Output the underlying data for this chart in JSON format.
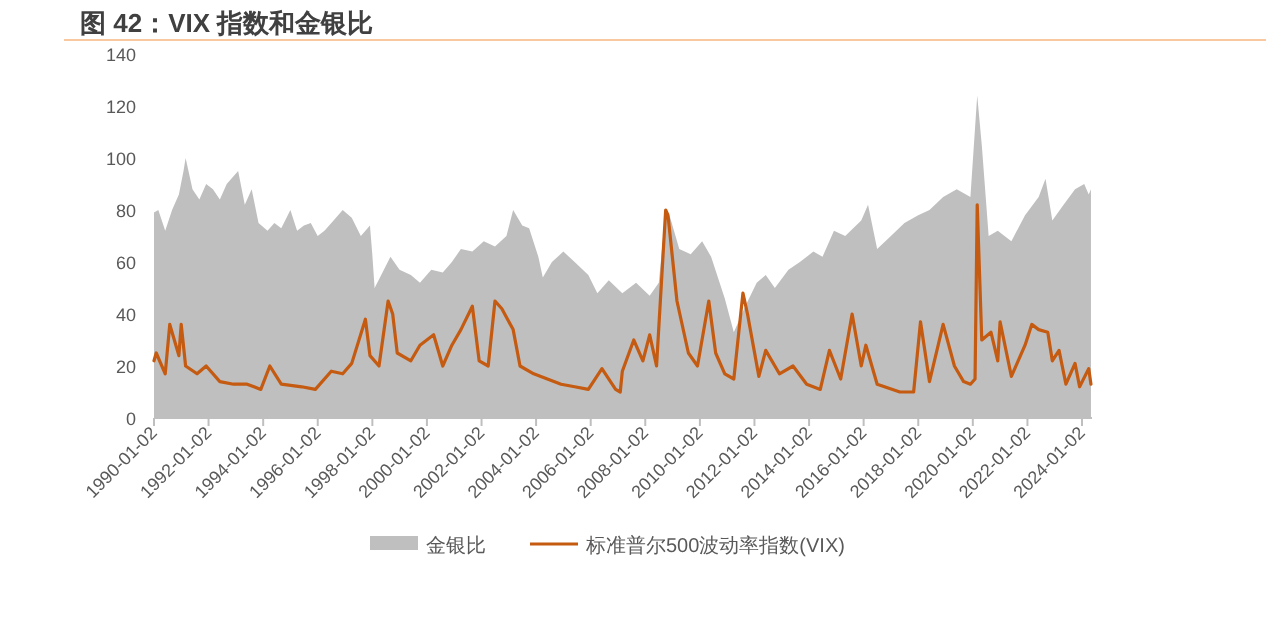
{
  "chart_data": {
    "type": "area",
    "title": "图 42：VIX 指数和金银比",
    "legend": "bottom",
    "grid": false,
    "xlim": [
      "1990-01-02",
      "2024-05-15"
    ],
    "ylim": [
      0,
      140
    ],
    "yticks": [
      0,
      20,
      40,
      60,
      80,
      100,
      120,
      140
    ],
    "xticks": [
      "1990-01-02",
      "1992-01-02",
      "1994-01-02",
      "1996-01-02",
      "1998-01-02",
      "2000-01-02",
      "2002-01-02",
      "2004-01-02",
      "2006-01-02",
      "2008-01-02",
      "2010-01-02",
      "2012-01-02",
      "2014-01-02",
      "2016-01-02",
      "2018-01-02",
      "2020-01-02",
      "2022-01-02",
      "2024-01-02"
    ],
    "series": [
      {
        "name": "金银比",
        "color": "#bfbfbf",
        "x": [
          "1990-01-02",
          "1990-03",
          "1990-06",
          "1990-09",
          "1990-12",
          "1991-02",
          "1991-03",
          "1991-06",
          "1991-09",
          "1991-12",
          "1992-03",
          "1992-06",
          "1992-09",
          "1992-12",
          "1993-02",
          "1993-05",
          "1993-08",
          "1993-11",
          "1994-03",
          "1994-06",
          "1994-09",
          "1995-01",
          "1995-04",
          "1995-07",
          "1995-10",
          "1996-01",
          "1996-04",
          "1996-08",
          "1996-12",
          "1997-04",
          "1997-08",
          "1997-12",
          "1998-01",
          "1998-02",
          "1998-05",
          "1998-09",
          "1999-01",
          "1999-06",
          "1999-10",
          "2000-03",
          "2000-08",
          "2000-12",
          "2001-04",
          "2001-09",
          "2002-02",
          "2002-07",
          "2002-12",
          "2003-03",
          "2003-07",
          "2003-10",
          "2004-02",
          "2004-04",
          "2004-08",
          "2005-01",
          "2005-06",
          "2005-12",
          "2006-04",
          "2006-09",
          "2007-03",
          "2007-09",
          "2008-03",
          "2008-07",
          "2008-10",
          "2008-12",
          "2009-04",
          "2009-09",
          "2010-02",
          "2010-06",
          "2010-12",
          "2011-04",
          "2011-09",
          "2012-02",
          "2012-06",
          "2012-10",
          "2013-04",
          "2013-09",
          "2014-03",
          "2014-07",
          "2014-12",
          "2015-05",
          "2015-12",
          "2016-03",
          "2016-07",
          "2017-01",
          "2017-07",
          "2018-01",
          "2018-06",
          "2018-12",
          "2019-06",
          "2019-12",
          "2020-03",
          "2020-05",
          "2020-08",
          "2020-12",
          "2021-06",
          "2021-12",
          "2022-06",
          "2022-09",
          "2022-12",
          "2023-05",
          "2023-10",
          "2024-02",
          "2024-04",
          "2024-05"
        ],
        "values": [
          79,
          80,
          72,
          80,
          86,
          95,
          100,
          88,
          84,
          90,
          88,
          84,
          90,
          93,
          95,
          82,
          88,
          75,
          72,
          75,
          73,
          80,
          72,
          74,
          75,
          70,
          72,
          76,
          80,
          77,
          70,
          74,
          63,
          50,
          55,
          62,
          57,
          55,
          52,
          57,
          56,
          60,
          65,
          64,
          68,
          66,
          70,
          80,
          74,
          73,
          62,
          54,
          60,
          64,
          60,
          55,
          48,
          53,
          48,
          52,
          47,
          52,
          80,
          77,
          65,
          63,
          68,
          62,
          46,
          33,
          43,
          52,
          55,
          50,
          57,
          60,
          64,
          62,
          72,
          70,
          76,
          82,
          65,
          70,
          75,
          78,
          80,
          85,
          88,
          85,
          124,
          105,
          70,
          72,
          68,
          78,
          85,
          92,
          76,
          82,
          88,
          90,
          86,
          88
        ]
      },
      {
        "name": "标准普尔500波动率指数(VIX)",
        "type": "line",
        "color": "#c55a11",
        "x": [
          "1990-01-02",
          "1990-02",
          "1990-06",
          "1990-08",
          "1990-10",
          "1990-12",
          "1991-01",
          "1991-03",
          "1991-08",
          "1991-12",
          "1992-06",
          "1992-12",
          "1993-06",
          "1993-12",
          "1994-04",
          "1994-09",
          "1995-06",
          "1995-12",
          "1996-07",
          "1996-12",
          "1997-04",
          "1997-10",
          "1997-12",
          "1998-04",
          "1998-08",
          "1998-10",
          "1998-12",
          "1999-06",
          "1999-10",
          "2000-04",
          "2000-08",
          "2000-12",
          "2001-04",
          "2001-09",
          "2001-12",
          "2002-04",
          "2002-07",
          "2002-10",
          "2003-03",
          "2003-06",
          "2003-12",
          "2004-06",
          "2004-12",
          "2005-06",
          "2005-12",
          "2006-06",
          "2006-12",
          "2007-02",
          "2007-03",
          "2007-08",
          "2007-12",
          "2008-03",
          "2008-06",
          "2008-10",
          "2008-11",
          "2009-03",
          "2009-08",
          "2009-12",
          "2010-05",
          "2010-08",
          "2010-12",
          "2011-04",
          "2011-08",
          "2011-10",
          "2012-03",
          "2012-06",
          "2012-12",
          "2013-06",
          "2013-12",
          "2014-06",
          "2014-10",
          "2015-03",
          "2015-08",
          "2015-12",
          "2016-02",
          "2016-07",
          "2017-05",
          "2017-11",
          "2018-02",
          "2018-06",
          "2018-12",
          "2019-05",
          "2019-09",
          "2019-12",
          "2020-02",
          "2020-03",
          "2020-05",
          "2020-09",
          "2020-12",
          "2021-01",
          "2021-06",
          "2021-12",
          "2022-03",
          "2022-06",
          "2022-10",
          "2022-12",
          "2023-03",
          "2023-06",
          "2023-10",
          "2023-12",
          "2024-04",
          "2024-05"
        ],
        "values": [
          22,
          25,
          17,
          36,
          30,
          24,
          36,
          20,
          17,
          20,
          14,
          13,
          13,
          11,
          20,
          13,
          12,
          11,
          18,
          17,
          21,
          38,
          24,
          20,
          45,
          40,
          25,
          22,
          28,
          32,
          20,
          28,
          34,
          43,
          22,
          20,
          45,
          42,
          34,
          20,
          17,
          15,
          13,
          12,
          11,
          19,
          11,
          10,
          18,
          30,
          22,
          32,
          20,
          80,
          78,
          45,
          25,
          20,
          45,
          25,
          17,
          15,
          48,
          40,
          16,
          26,
          17,
          20,
          13,
          11,
          26,
          15,
          40,
          20,
          28,
          13,
          10,
          10,
          37,
          14,
          36,
          20,
          14,
          13,
          15,
          82,
          30,
          33,
          22,
          37,
          16,
          28,
          36,
          34,
          33,
          22,
          26,
          13,
          21,
          12,
          19,
          13
        ]
      }
    ]
  }
}
